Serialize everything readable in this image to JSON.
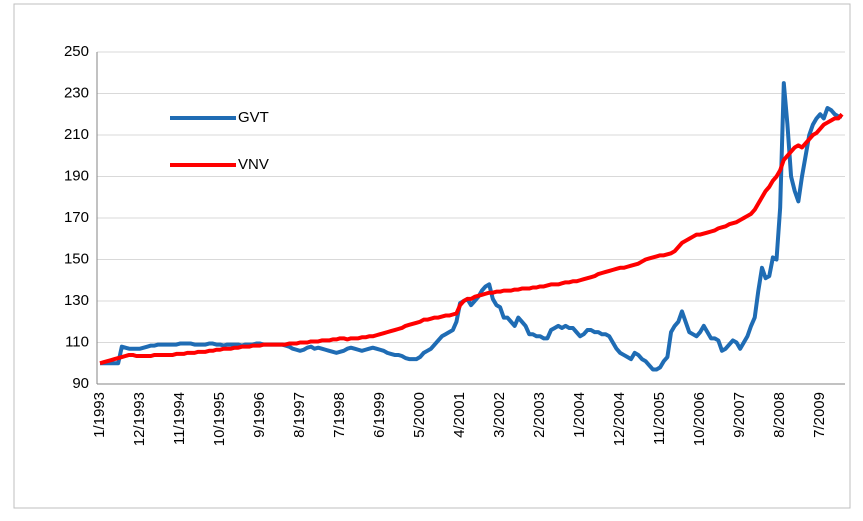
{
  "chart_data": {
    "type": "line",
    "categories": [
      "1/1993",
      null,
      null,
      null,
      null,
      null,
      null,
      null,
      null,
      null,
      null,
      "12/1993",
      null,
      null,
      null,
      null,
      null,
      null,
      null,
      null,
      null,
      null,
      "11/1994",
      null,
      null,
      null,
      null,
      null,
      null,
      null,
      null,
      null,
      null,
      "10/1995",
      null,
      null,
      null,
      null,
      null,
      null,
      null,
      null,
      null,
      null,
      "9/1996",
      null,
      null,
      null,
      null,
      null,
      null,
      null,
      null,
      null,
      null,
      "8/1997",
      null,
      null,
      null,
      null,
      null,
      null,
      null,
      null,
      null,
      null,
      "7/1998",
      null,
      null,
      null,
      null,
      null,
      null,
      null,
      null,
      null,
      null,
      "6/1999",
      null,
      null,
      null,
      null,
      null,
      null,
      null,
      null,
      null,
      null,
      "5/2000",
      null,
      null,
      null,
      null,
      null,
      null,
      null,
      null,
      null,
      null,
      "4/2001",
      null,
      null,
      null,
      null,
      null,
      null,
      null,
      null,
      null,
      null,
      "3/2002",
      null,
      null,
      null,
      null,
      null,
      null,
      null,
      null,
      null,
      null,
      "2/2003",
      null,
      null,
      null,
      null,
      null,
      null,
      null,
      null,
      null,
      null,
      "1/2004",
      null,
      null,
      null,
      null,
      null,
      null,
      null,
      null,
      null,
      null,
      "12/2004",
      null,
      null,
      null,
      null,
      null,
      null,
      null,
      null,
      null,
      null,
      "11/2005",
      null,
      null,
      null,
      null,
      null,
      null,
      null,
      null,
      null,
      null,
      "10/2006",
      null,
      null,
      null,
      null,
      null,
      null,
      null,
      null,
      null,
      null,
      "9/2007",
      null,
      null,
      null,
      null,
      null,
      null,
      null,
      null,
      null,
      null,
      "8/2008",
      null,
      null,
      null,
      null,
      null,
      null,
      null,
      null,
      null,
      null,
      "7/2009",
      null,
      null,
      null,
      null,
      null,
      null
    ],
    "series": [
      {
        "name": "GVT",
        "color": "#1f6cb4",
        "values": [
          100,
          100,
          100,
          100,
          100,
          100,
          108,
          107.5,
          107,
          107,
          107,
          107,
          107.5,
          108,
          108.5,
          108.5,
          109,
          109,
          109,
          109,
          109,
          109,
          109.5,
          109.5,
          109.5,
          109.5,
          109,
          109,
          109,
          109,
          109.5,
          109.5,
          109,
          109,
          108.5,
          109,
          109,
          109,
          109,
          108.5,
          109,
          109,
          109,
          109.5,
          109.5,
          109,
          109,
          109,
          109,
          109,
          109,
          108.5,
          108,
          107,
          106.5,
          106,
          106.5,
          107.5,
          108,
          107,
          107.5,
          107,
          106.5,
          106,
          105.5,
          105,
          105.5,
          106,
          107,
          107.5,
          107,
          106.5,
          106,
          106.5,
          107,
          107.5,
          107,
          106.5,
          106,
          105,
          104.5,
          104,
          104,
          103.5,
          102.5,
          102,
          102,
          102,
          103,
          105,
          106,
          107,
          109,
          111,
          113,
          114,
          115,
          116,
          120,
          129,
          130,
          131,
          128,
          130,
          132,
          135,
          137,
          138,
          131,
          128,
          127,
          122,
          122,
          120,
          118,
          122,
          120,
          118,
          114,
          114,
          113,
          113,
          112,
          112,
          116,
          117,
          118,
          117,
          118,
          117,
          117,
          115,
          113,
          114,
          116,
          116,
          115,
          115,
          114,
          114,
          113,
          110,
          107,
          105,
          104,
          103,
          102,
          105,
          104,
          102,
          101,
          99,
          97,
          97,
          98,
          101,
          103,
          115,
          118,
          120,
          125,
          120,
          115,
          114,
          113,
          115,
          118,
          115,
          112,
          112,
          111,
          106,
          107,
          109,
          111,
          110,
          107,
          110,
          113,
          118,
          122,
          135,
          146,
          141,
          142,
          151,
          150,
          175,
          235,
          215,
          190,
          183,
          178,
          190,
          200,
          210,
          215,
          218,
          220,
          218,
          223,
          222,
          220,
          219,
          219
        ]
      },
      {
        "name": "VNV",
        "color": "#ff0000",
        "values": [
          100,
          100.5,
          101,
          101.5,
          102,
          102.5,
          103,
          103.5,
          104,
          104,
          103.5,
          103.5,
          103.5,
          103.5,
          103.5,
          104,
          104,
          104,
          104,
          104,
          104,
          104.5,
          104.5,
          104.5,
          105,
          105,
          105,
          105.5,
          105.5,
          105.5,
          106,
          106,
          106.5,
          106.5,
          107,
          107,
          107,
          107.5,
          107.5,
          108,
          108,
          108,
          108.5,
          108.5,
          108.5,
          109,
          109,
          109,
          109,
          109,
          109,
          109,
          109.5,
          109.5,
          109.5,
          110,
          110,
          110,
          110.5,
          110.5,
          110.5,
          111,
          111,
          111,
          111.5,
          111.5,
          112,
          112,
          111.5,
          112,
          112,
          112,
          112.5,
          112.5,
          113,
          113,
          113.5,
          114,
          114.5,
          115,
          115.5,
          116,
          116.5,
          117,
          118,
          118.5,
          119,
          119.5,
          120,
          121,
          121,
          121.5,
          122,
          122,
          122.5,
          123,
          123,
          123.5,
          124,
          128,
          130,
          131,
          131,
          132,
          132.5,
          133,
          133.5,
          134,
          134,
          134.5,
          134.5,
          135,
          135,
          135,
          135.5,
          135.5,
          136,
          136,
          136,
          136.5,
          136.5,
          137,
          137,
          137.5,
          138,
          138,
          138,
          138.5,
          139,
          139,
          139.5,
          139.5,
          140,
          140.5,
          141,
          141.5,
          142,
          143,
          143.5,
          144,
          144.5,
          145,
          145.5,
          146,
          146,
          146.5,
          147,
          147.5,
          148,
          149,
          150,
          150.5,
          151,
          151.5,
          152,
          152,
          152.5,
          153,
          154,
          156,
          158,
          159,
          160,
          161,
          162,
          162,
          162.5,
          163,
          163.5,
          164,
          165,
          165.5,
          166,
          167,
          167.5,
          168,
          169,
          170,
          171,
          172,
          174,
          177,
          180,
          183,
          185,
          188,
          190,
          193,
          198,
          200,
          202,
          204,
          205,
          204,
          206,
          208,
          210,
          211,
          213,
          215,
          216,
          217,
          218,
          218,
          220
        ]
      }
    ],
    "ylim": [
      90,
      250
    ],
    "yticks": [
      90,
      110,
      130,
      150,
      170,
      190,
      210,
      230,
      250
    ],
    "grid": true,
    "legend": "upper left"
  }
}
